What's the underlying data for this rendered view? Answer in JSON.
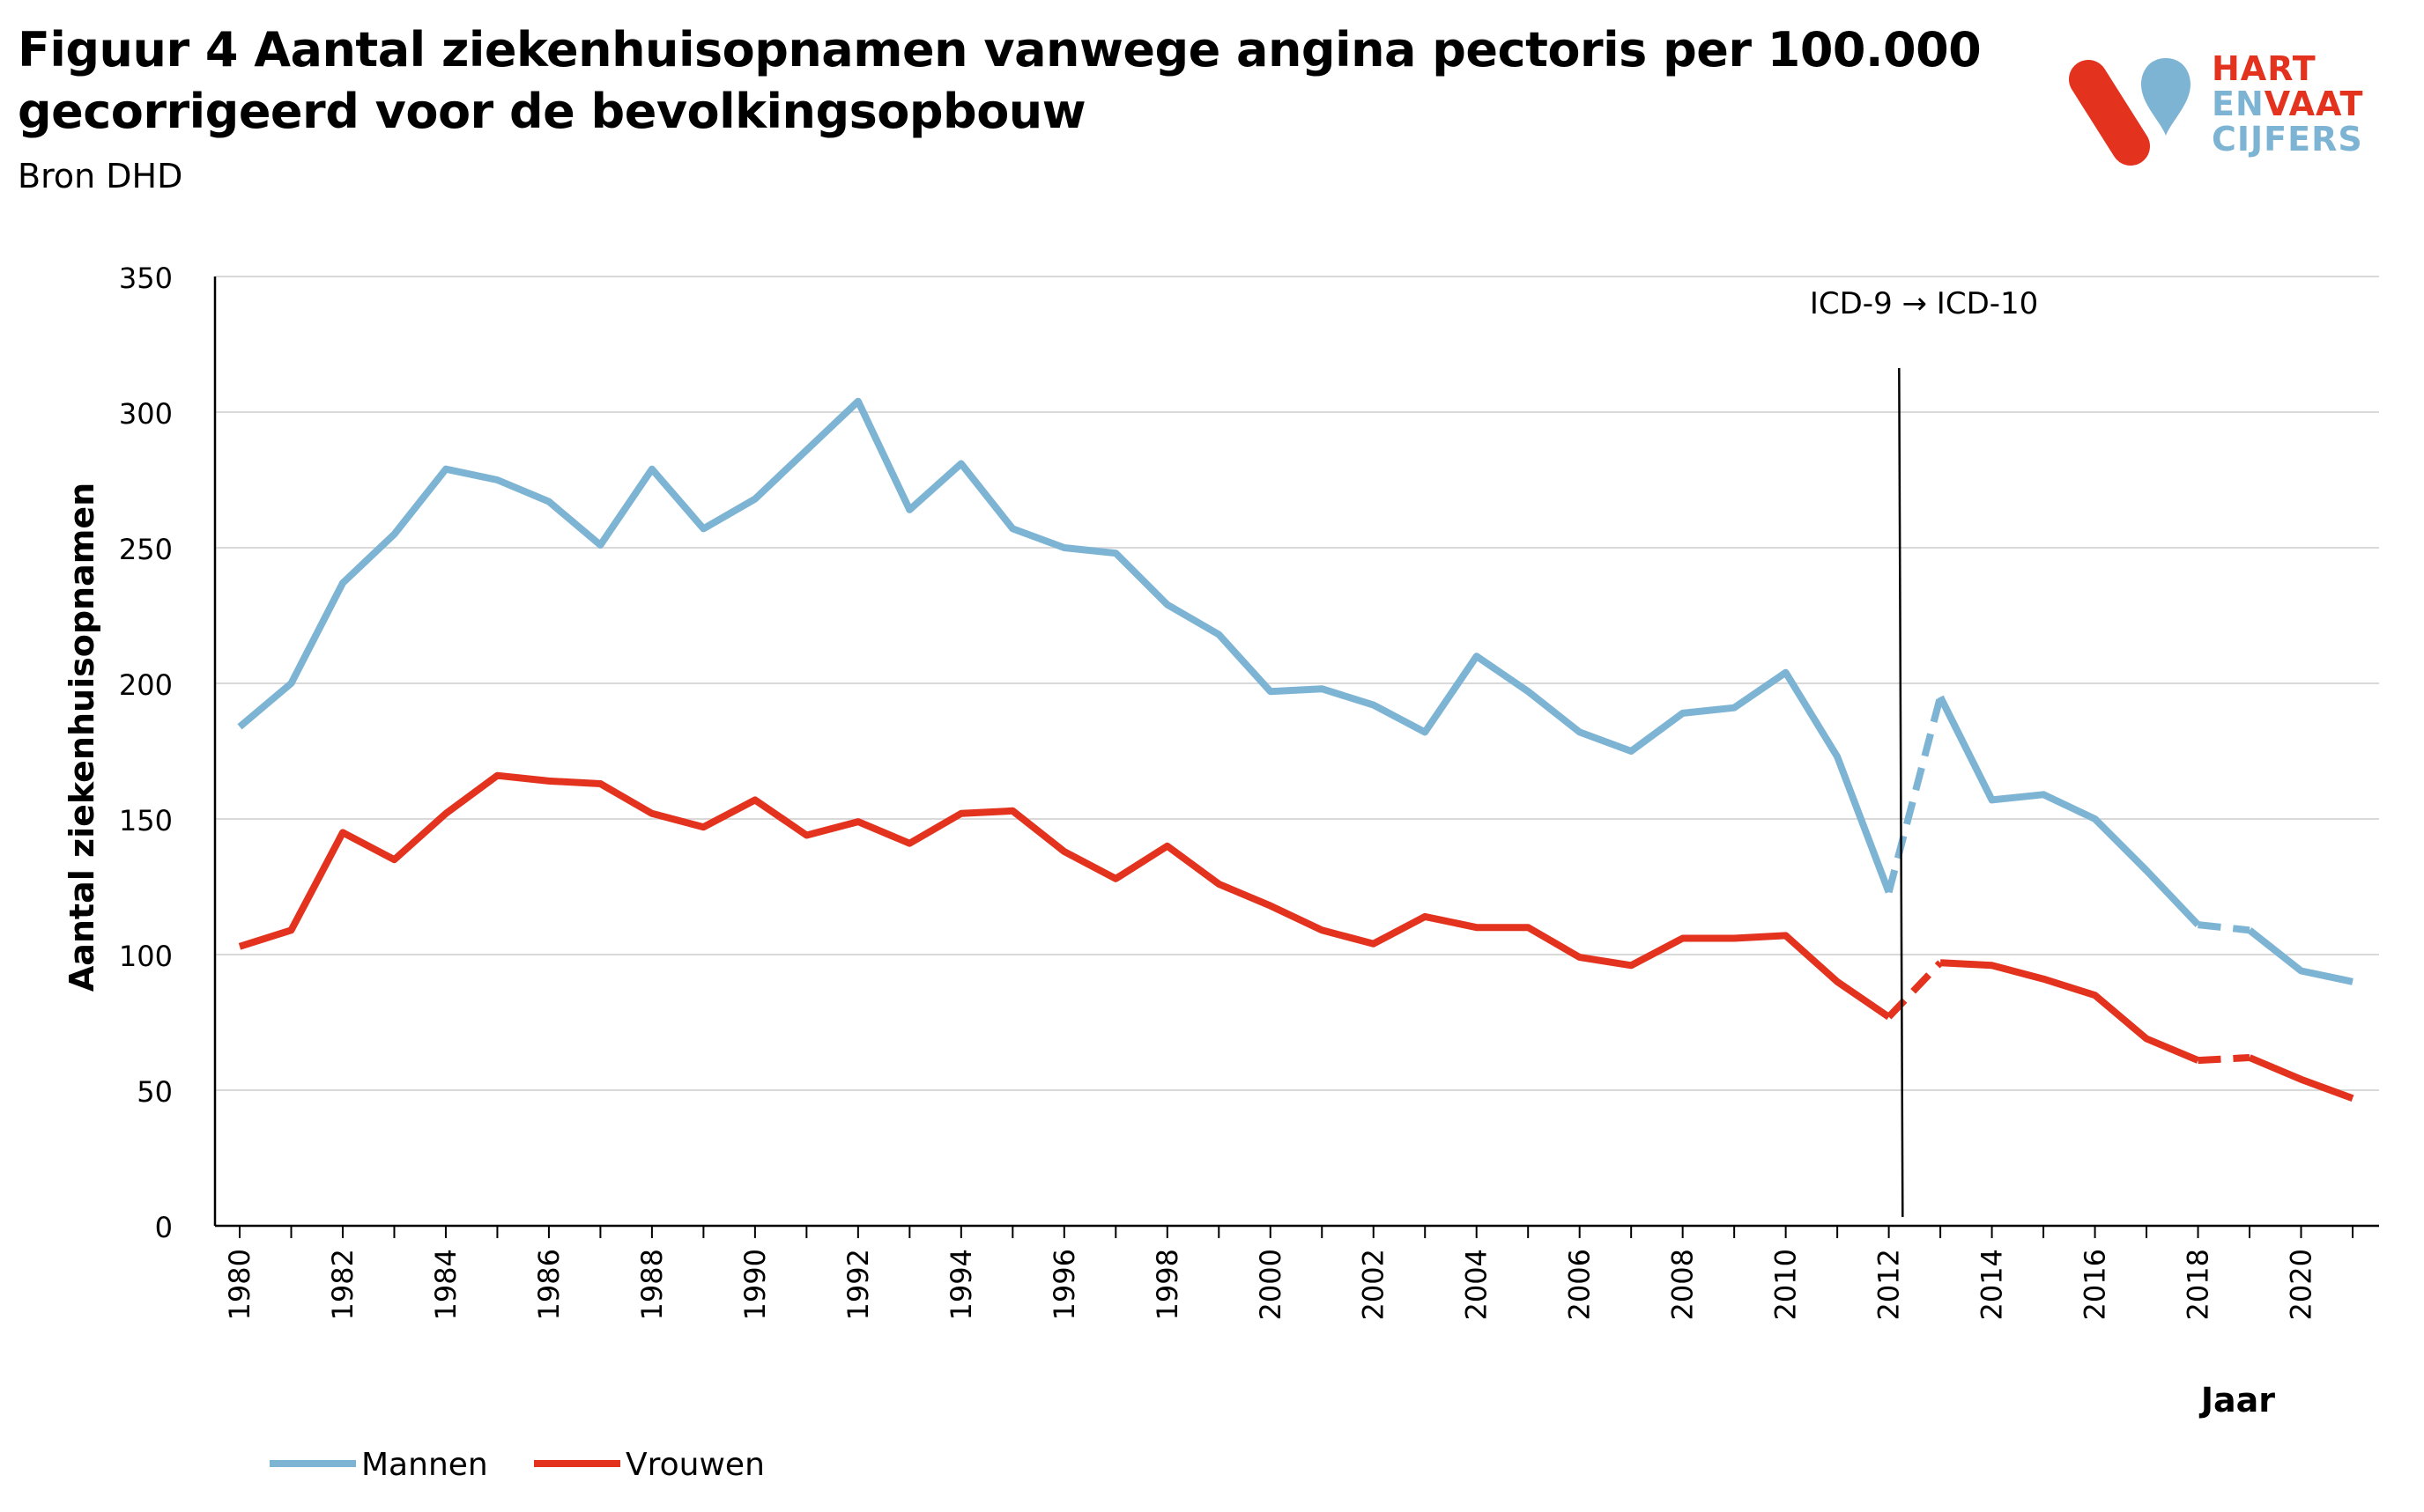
{
  "header": {
    "title_line1": "Figuur 4 Aantal ziekenhuisopnamen vanwege angina pectoris per 100.000",
    "title_line2": "gecorrigeerd voor de bevolkingsopbouw",
    "source": "Bron DHD"
  },
  "logo": {
    "line1": "HART",
    "line2_a": "EN",
    "line2_b": "VAAT",
    "line3": "CIJFERS",
    "red": "#e3321e",
    "blue": "#7db4d4"
  },
  "chart_data": {
    "type": "line",
    "title": "Aantal ziekenhuisopnamen vanwege angina pectoris per 100.000",
    "xlabel": "Jaar",
    "ylabel": "Aantal ziekenhuisopnamen",
    "ylim": [
      0,
      350
    ],
    "yticks": [
      0,
      50,
      100,
      150,
      200,
      250,
      300,
      350
    ],
    "xlim": [
      1980,
      2021
    ],
    "xtick_labels": [
      "1980",
      "1982",
      "1984",
      "1986",
      "1988",
      "1990",
      "1992",
      "1994",
      "1996",
      "1998",
      "2000",
      "2002",
      "2004",
      "2006",
      "2008",
      "2010",
      "2012",
      "2014",
      "2016",
      "2018",
      "2020"
    ],
    "grid": true,
    "legend_position": "bottom-left",
    "annotation": {
      "text": "ICD-9 → ICD-10",
      "x": 2012.2
    },
    "x": [
      1980,
      1981,
      1982,
      1983,
      1984,
      1985,
      1986,
      1987,
      1988,
      1989,
      1990,
      1991,
      1992,
      1993,
      1994,
      1995,
      1996,
      1997,
      1998,
      1999,
      2000,
      2001,
      2002,
      2003,
      2004,
      2005,
      2006,
      2007,
      2008,
      2009,
      2010,
      2011,
      2012,
      2013,
      2014,
      2015,
      2016,
      2017,
      2018,
      2019,
      2020,
      2021
    ],
    "dashed_segments": [
      [
        2012,
        2013
      ],
      [
        2018,
        2019
      ]
    ],
    "series": [
      {
        "name": "Mannen",
        "color": "#7db4d4",
        "values": [
          184,
          200,
          237,
          255,
          279,
          275,
          267,
          251,
          279,
          257,
          268,
          286,
          304,
          264,
          281,
          257,
          250,
          248,
          229,
          218,
          197,
          198,
          192,
          182,
          210,
          197,
          182,
          175,
          189,
          191,
          204,
          173,
          123,
          195,
          157,
          159,
          150,
          131,
          111,
          109,
          94,
          90
        ]
      },
      {
        "name": "Vrouwen",
        "color": "#e3321e",
        "values": [
          103,
          109,
          145,
          135,
          152,
          166,
          164,
          163,
          152,
          147,
          157,
          144,
          149,
          141,
          152,
          153,
          138,
          128,
          140,
          126,
          118,
          109,
          104,
          114,
          110,
          110,
          99,
          96,
          106,
          106,
          107,
          90,
          77,
          97,
          96,
          91,
          85,
          69,
          61,
          62,
          54,
          47
        ]
      }
    ]
  }
}
